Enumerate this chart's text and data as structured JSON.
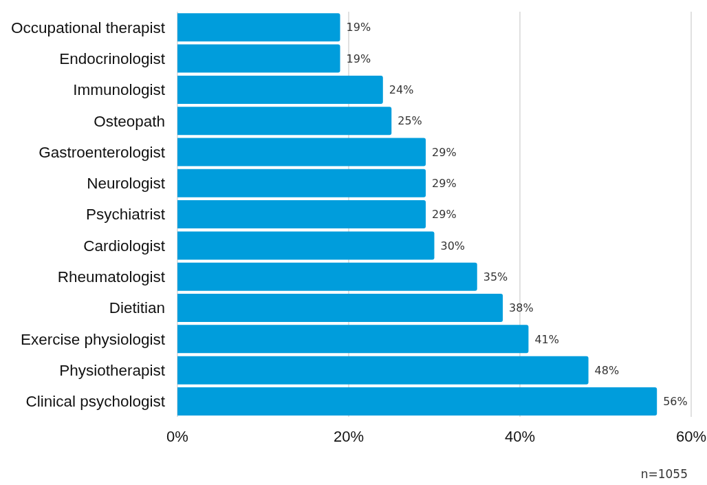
{
  "chart_data": {
    "type": "bar",
    "orientation": "horizontal",
    "categories": [
      "Occupational therapist",
      "Endocrinologist",
      "Immunologist",
      "Osteopath",
      "Gastroenterologist",
      "Neurologist",
      "Psychiatrist",
      "Cardiologist",
      "Rheumatologist",
      "Dietitian",
      "Exercise physiologist",
      "Physiotherapist",
      "Clinical psychologist"
    ],
    "values": [
      19,
      19,
      24,
      25,
      29,
      29,
      29,
      30,
      35,
      38,
      41,
      48,
      56
    ],
    "value_labels": [
      "19%",
      "19%",
      "24%",
      "25%",
      "29%",
      "29%",
      "29%",
      "30%",
      "35%",
      "38%",
      "41%",
      "48%",
      "56%"
    ],
    "color": "#009ddc",
    "xlim": [
      0,
      60
    ],
    "xticks": [
      {
        "value": 0,
        "label": "0%"
      },
      {
        "value": 20,
        "label": "20%"
      },
      {
        "value": 40,
        "label": "40%"
      },
      {
        "value": 60,
        "label": "60%"
      }
    ],
    "grid": "x",
    "annotations": [
      "n=1055"
    ]
  }
}
